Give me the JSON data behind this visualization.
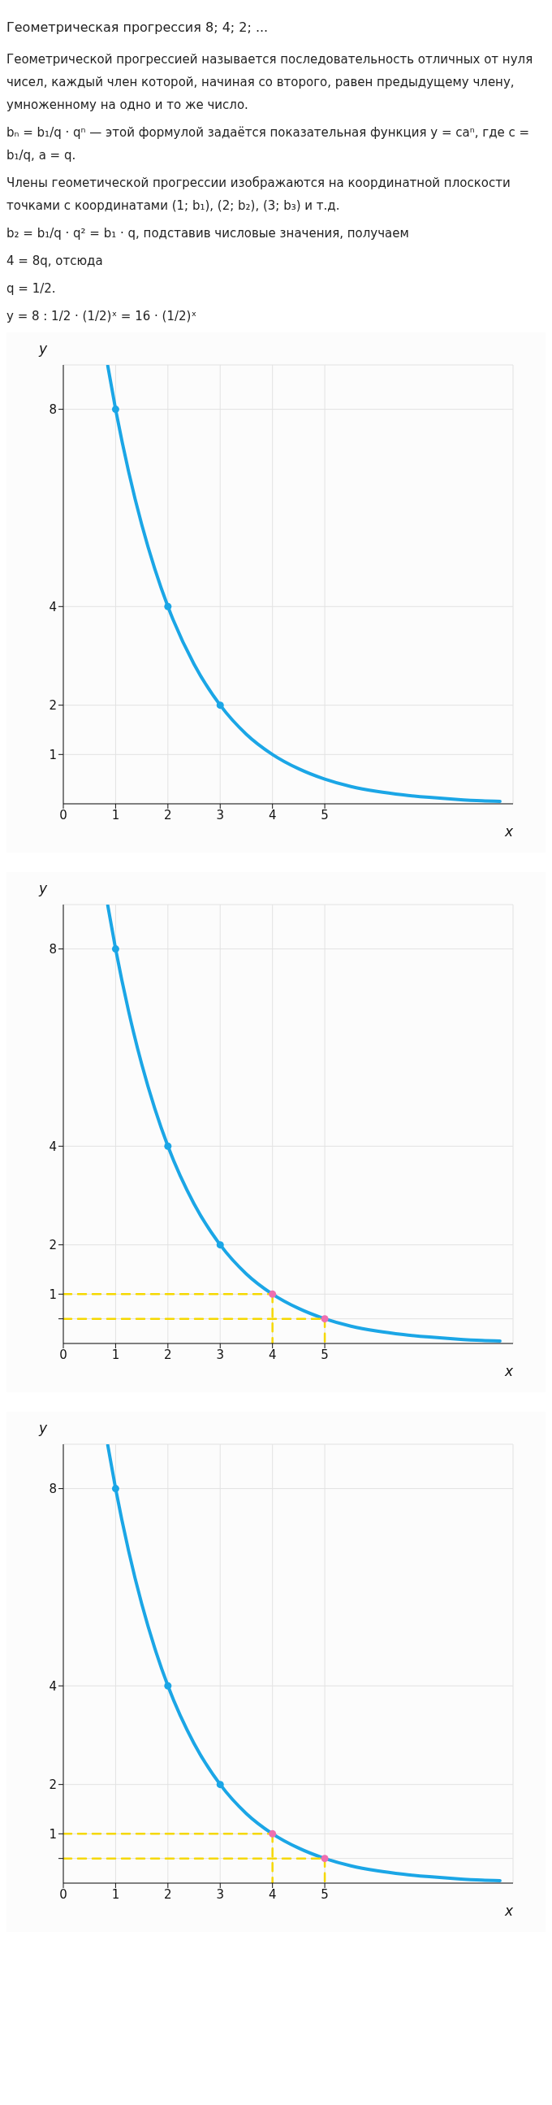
{
  "chart_data": [
    {
      "type": "line",
      "title": "Геометрическая прогрессия 8; 4; 2; ...",
      "annotations": [
        "Геометрической прогрессией называется последовательность отличных от нуля чисел, каждый член которой, начиная со второго, равен предыдущему члену, умноженному на одно и то же число.",
        "bₙ = b₁/q · qⁿ — этой формулой задаётся показательная функция y = caⁿ, где c = b₁/q, a = q.",
        "Члены геометической прогрессии изображаются на координатной плоскости точками с координатами (1; b₁), (2; b₂), (3; b₃) и т.д.",
        "b₂ = b₁/q · q² = b₁ · q, подставив числовые значения, получаем",
        "4 = 8q, отсюда",
        "q = 1/2.",
        "y = 8 : 1/2 · (1/2)ˣ = 16 · (1/2)ˣ"
      ],
      "xlabel": "x",
      "ylabel": "y",
      "xlim": [
        0,
        8.6
      ],
      "ylim": [
        0,
        8.9
      ],
      "xticks": [
        0,
        1,
        2,
        3,
        4,
        5
      ],
      "yticks": [
        1,
        2,
        4,
        8
      ],
      "grid": true,
      "series": [
        {
          "marker": "none",
          "color": "#1ba6e6",
          "x": [
            0.85,
            1,
            1.25,
            1.5,
            1.75,
            2,
            2.5,
            3,
            3.5,
            4,
            4.5,
            5,
            5.5,
            6,
            6.5,
            7,
            7.5,
            8,
            8.35
          ],
          "values": [
            8.88,
            8,
            6.73,
            5.66,
            4.76,
            4,
            2.83,
            2,
            1.41,
            1,
            0.71,
            0.5,
            0.35,
            0.25,
            0.18,
            0.13,
            0.09,
            0.06,
            0.05
          ]
        },
        {
          "type": "scatter",
          "marker": "circle",
          "color": "#1ba6e6",
          "x": [
            1,
            2,
            3
          ],
          "values": [
            8,
            4,
            2
          ]
        }
      ]
    },
    {
      "type": "line",
      "xlabel": "x",
      "ylabel": "y",
      "xlim": [
        0,
        8.6
      ],
      "ylim": [
        0,
        8.9
      ],
      "xticks": [
        0,
        1,
        2,
        3,
        4,
        5
      ],
      "yticks": [
        {
          "value": 0.5,
          "label": null
        },
        1,
        2,
        4,
        8
      ],
      "grid": true,
      "series": [
        {
          "marker": "none",
          "color": "#1ba6e6",
          "x": [
            0.85,
            1,
            1.25,
            1.5,
            1.75,
            2,
            2.5,
            3,
            3.5,
            4,
            4.5,
            5,
            5.5,
            6,
            6.5,
            7,
            7.5,
            8,
            8.35
          ],
          "values": [
            8.88,
            8,
            6.73,
            5.66,
            4.76,
            4,
            2.83,
            2,
            1.41,
            1,
            0.71,
            0.5,
            0.35,
            0.25,
            0.18,
            0.13,
            0.09,
            0.06,
            0.05
          ]
        },
        {
          "marker": "none",
          "line_style": "dashed",
          "color": "#f5d800",
          "x": [
            0,
            4
          ],
          "values": [
            1,
            1
          ]
        },
        {
          "marker": "none",
          "line_style": "dashed",
          "color": "#f5d800",
          "x": [
            4,
            4
          ],
          "values": [
            1,
            0
          ]
        },
        {
          "marker": "none",
          "line_style": "dashed",
          "color": "#f5d800",
          "x": [
            0,
            5
          ],
          "values": [
            0.5,
            0.5
          ]
        },
        {
          "marker": "none",
          "line_style": "dashed",
          "color": "#f5d800",
          "x": [
            5,
            5
          ],
          "values": [
            0.5,
            0
          ]
        },
        {
          "type": "scatter",
          "marker": "circle",
          "color": "#1ba6e6",
          "x": [
            1,
            2,
            3
          ],
          "values": [
            8,
            4,
            2
          ]
        },
        {
          "type": "scatter",
          "marker": "circle",
          "color": "#ee6fb0",
          "x": [
            4,
            5
          ],
          "values": [
            1,
            0.5
          ]
        }
      ]
    },
    {
      "type": "line",
      "xlabel": "x",
      "ylabel": "y",
      "xlim": [
        0,
        8.6
      ],
      "ylim": [
        0,
        8.9
      ],
      "xticks": [
        0,
        1,
        2,
        3,
        4,
        5
      ],
      "yticks": [
        {
          "value": 0.5,
          "label": null
        },
        1,
        2,
        4,
        8
      ],
      "grid": true,
      "series": [
        {
          "marker": "none",
          "color": "#1ba6e6",
          "x": [
            0.85,
            1,
            1.25,
            1.5,
            1.75,
            2,
            2.5,
            3,
            3.5,
            4,
            4.5,
            5,
            5.5,
            6,
            6.5,
            7,
            7.5,
            8,
            8.35
          ],
          "values": [
            8.88,
            8,
            6.73,
            5.66,
            4.76,
            4,
            2.83,
            2,
            1.41,
            1,
            0.71,
            0.5,
            0.35,
            0.25,
            0.18,
            0.13,
            0.09,
            0.06,
            0.05
          ]
        },
        {
          "marker": "none",
          "line_style": "dashed",
          "color": "#f5d800",
          "x": [
            0,
            4
          ],
          "values": [
            1,
            1
          ]
        },
        {
          "marker": "none",
          "line_style": "dashed",
          "color": "#f5d800",
          "x": [
            4,
            4
          ],
          "values": [
            1,
            0
          ]
        },
        {
          "marker": "none",
          "line_style": "dashed",
          "color": "#f5d800",
          "x": [
            0,
            5
          ],
          "values": [
            0.5,
            0.5
          ]
        },
        {
          "marker": "none",
          "line_style": "dashed",
          "color": "#f5d800",
          "x": [
            5,
            5
          ],
          "values": [
            0.5,
            0
          ]
        },
        {
          "type": "scatter",
          "marker": "circle",
          "color": "#1ba6e6",
          "x": [
            1,
            2,
            3
          ],
          "values": [
            8,
            4,
            2
          ]
        },
        {
          "type": "scatter",
          "marker": "circle",
          "color": "#ee6fb0",
          "x": [
            4,
            5
          ],
          "values": [
            1,
            0.5
          ]
        }
      ]
    }
  ]
}
